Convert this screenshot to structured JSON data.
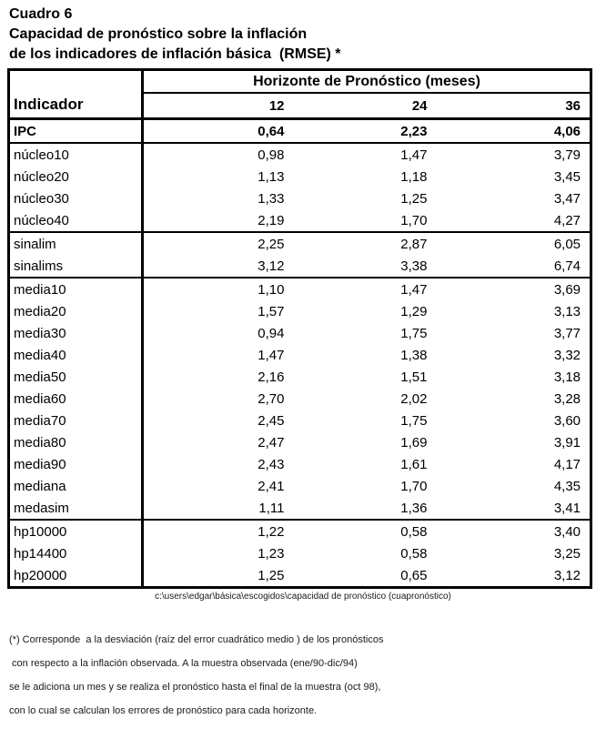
{
  "titles": {
    "line1": "Cuadro 6",
    "line2": "Capacidad de pronóstico sobre la inflación",
    "line3": "de los indicadores de inflación básica  (RMSE) *"
  },
  "table": {
    "header_group": "Horizonte de Pronóstico (meses)",
    "col_indicator": "Indicador",
    "horizons": [
      "12",
      "24",
      "36"
    ],
    "groups": [
      {
        "rows": [
          {
            "label": "IPC",
            "values": [
              "0,64",
              "2,23",
              "4,06"
            ],
            "bold": true
          }
        ]
      },
      {
        "rows": [
          {
            "label": "núcleo10",
            "values": [
              "0,98",
              "1,47",
              "3,79"
            ]
          },
          {
            "label": "núcleo20",
            "values": [
              "1,13",
              "1,18",
              "3,45"
            ]
          },
          {
            "label": "núcleo30",
            "values": [
              "1,33",
              "1,25",
              "3,47"
            ]
          },
          {
            "label": "núcleo40",
            "values": [
              "2,19",
              "1,70",
              "4,27"
            ]
          }
        ]
      },
      {
        "rows": [
          {
            "label": "sinalim",
            "values": [
              "2,25",
              "2,87",
              "6,05"
            ]
          },
          {
            "label": "sinalims",
            "values": [
              "3,12",
              "3,38",
              "6,74"
            ]
          }
        ]
      },
      {
        "rows": [
          {
            "label": "media10",
            "values": [
              "1,10",
              "1,47",
              "3,69"
            ]
          },
          {
            "label": "media20",
            "values": [
              "1,57",
              "1,29",
              "3,13"
            ]
          },
          {
            "label": "media30",
            "values": [
              "0,94",
              "1,75",
              "3,77"
            ]
          },
          {
            "label": "media40",
            "values": [
              "1,47",
              "1,38",
              "3,32"
            ]
          },
          {
            "label": "media50",
            "values": [
              "2,16",
              "1,51",
              "3,18"
            ]
          },
          {
            "label": "media60",
            "values": [
              "2,70",
              "2,02",
              "3,28"
            ]
          },
          {
            "label": "media70",
            "values": [
              "2,45",
              "1,75",
              "3,60"
            ]
          },
          {
            "label": "media80",
            "values": [
              "2,47",
              "1,69",
              "3,91"
            ]
          },
          {
            "label": "media90",
            "values": [
              "2,43",
              "1,61",
              "4,17"
            ]
          },
          {
            "label": "mediana",
            "values": [
              "2,41",
              "1,70",
              "4,35"
            ]
          },
          {
            "label": "medasim",
            "values": [
              "1,11",
              "1,36",
              "3,41"
            ]
          }
        ]
      },
      {
        "rows": [
          {
            "label": "hp10000",
            "values": [
              "1,22",
              "0,58",
              "3,40"
            ]
          },
          {
            "label": "hp14400",
            "values": [
              "1,23",
              "0,58",
              "3,25"
            ]
          },
          {
            "label": "hp20000",
            "values": [
              "1,25",
              "0,65",
              "3,12"
            ]
          }
        ]
      }
    ]
  },
  "caption": "c:\\users\\edgar\\básica\\escogidos\\capacidad de pronóstico (cuapronóstico)",
  "footnote": {
    "lines": [
      "(*) Corresponde  a la desviación (raíz del error cuadrático medio ) de los pronósticos",
      " con respecto a la inflación observada. A la muestra observada (ene/90-dic/94)",
      "se le adiciona un mes y se realiza el pronóstico hasta el final de la muestra (oct 98),",
      "con lo cual se calculan los errores de pronóstico para cada horizonte."
    ]
  },
  "colors": {
    "text": "#000000",
    "border": "#000000",
    "background": "#ffffff"
  }
}
